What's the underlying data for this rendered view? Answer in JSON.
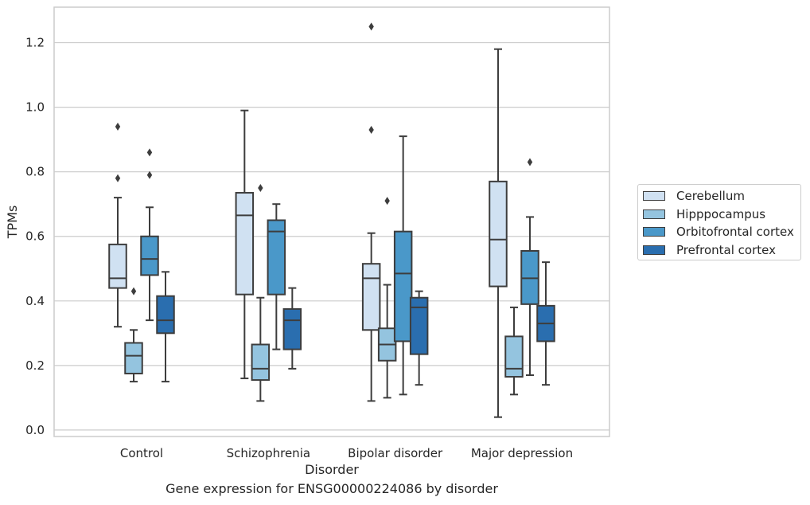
{
  "caption": "Gene expression for ENSG00000224086 by disorder",
  "chart_data": {
    "type": "box",
    "xlabel": "Disorder",
    "ylabel": "TPMs",
    "categories": [
      "Control",
      "Schizophrenia",
      "Bipolar disorder",
      "Major depression"
    ],
    "ylim": [
      -0.02,
      1.31
    ],
    "yticks": [
      0.0,
      0.2,
      0.4,
      0.6,
      0.8,
      1.0,
      1.2
    ],
    "ytick_labels": [
      "0.0",
      "0.2",
      "0.4",
      "0.6",
      "0.8",
      "1.0",
      "1.2"
    ],
    "grid": "horizontal",
    "legend_position": "right",
    "series": [
      {
        "name": "Cerebellum",
        "color": "#d0e1f2",
        "boxes": [
          {
            "whisker_low": 0.32,
            "q1": 0.44,
            "median": 0.47,
            "q3": 0.575,
            "whisker_high": 0.72,
            "outliers": [
              0.78,
              0.94
            ]
          },
          {
            "whisker_low": 0.16,
            "q1": 0.42,
            "median": 0.665,
            "q3": 0.735,
            "whisker_high": 0.99,
            "outliers": []
          },
          {
            "whisker_low": 0.09,
            "q1": 0.31,
            "median": 0.47,
            "q3": 0.515,
            "whisker_high": 0.61,
            "outliers": [
              0.93,
              1.25
            ]
          },
          {
            "whisker_low": 0.04,
            "q1": 0.445,
            "median": 0.59,
            "q3": 0.77,
            "whisker_high": 1.18,
            "outliers": []
          }
        ]
      },
      {
        "name": "Hipppocampus",
        "color": "#94c4df",
        "boxes": [
          {
            "whisker_low": 0.15,
            "q1": 0.175,
            "median": 0.23,
            "q3": 0.27,
            "whisker_high": 0.31,
            "outliers": [
              0.43
            ]
          },
          {
            "whisker_low": 0.09,
            "q1": 0.155,
            "median": 0.19,
            "q3": 0.265,
            "whisker_high": 0.41,
            "outliers": [
              0.75
            ]
          },
          {
            "whisker_low": 0.1,
            "q1": 0.215,
            "median": 0.265,
            "q3": 0.315,
            "whisker_high": 0.45,
            "outliers": [
              0.71
            ]
          },
          {
            "whisker_low": 0.11,
            "q1": 0.165,
            "median": 0.19,
            "q3": 0.29,
            "whisker_high": 0.38,
            "outliers": []
          }
        ]
      },
      {
        "name": "Orbitofrontal cortex",
        "color": "#4a98c9",
        "boxes": [
          {
            "whisker_low": 0.34,
            "q1": 0.48,
            "median": 0.53,
            "q3": 0.6,
            "whisker_high": 0.69,
            "outliers": [
              0.79,
              0.86
            ]
          },
          {
            "whisker_low": 0.25,
            "q1": 0.42,
            "median": 0.615,
            "q3": 0.65,
            "whisker_high": 0.7,
            "outliers": []
          },
          {
            "whisker_low": 0.11,
            "q1": 0.275,
            "median": 0.485,
            "q3": 0.615,
            "whisker_high": 0.91,
            "outliers": []
          },
          {
            "whisker_low": 0.17,
            "q1": 0.39,
            "median": 0.47,
            "q3": 0.555,
            "whisker_high": 0.66,
            "outliers": [
              0.83
            ]
          }
        ]
      },
      {
        "name": "Prefrontal cortex",
        "color": "#2a6eaf",
        "boxes": [
          {
            "whisker_low": 0.15,
            "q1": 0.3,
            "median": 0.34,
            "q3": 0.415,
            "whisker_high": 0.49,
            "outliers": []
          },
          {
            "whisker_low": 0.19,
            "q1": 0.25,
            "median": 0.34,
            "q3": 0.375,
            "whisker_high": 0.44,
            "outliers": []
          },
          {
            "whisker_low": 0.14,
            "q1": 0.235,
            "median": 0.38,
            "q3": 0.41,
            "whisker_high": 0.43,
            "outliers": []
          },
          {
            "whisker_low": 0.14,
            "q1": 0.275,
            "median": 0.33,
            "q3": 0.385,
            "whisker_high": 0.52,
            "outliers": []
          }
        ]
      }
    ]
  },
  "colors": {
    "grid": "#cccccc",
    "box_edge": "#3d3d3d",
    "outlier": "#3d3d3d"
  }
}
